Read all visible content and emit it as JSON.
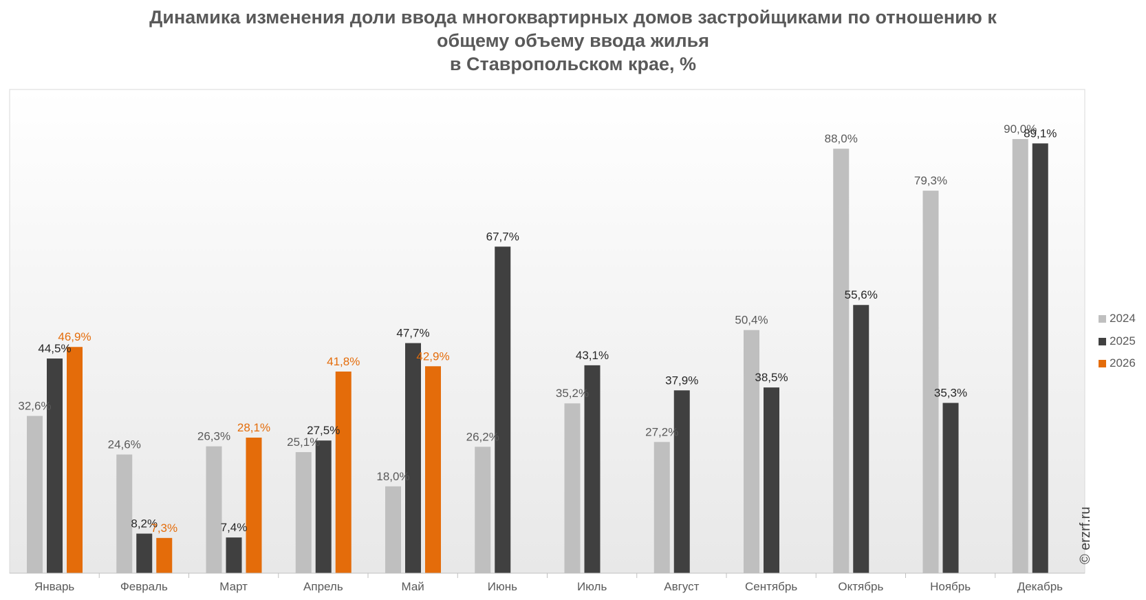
{
  "chart_data": {
    "type": "bar",
    "title_lines": [
      "Динамика изменения доли ввода многоквартирных домов застройщиками по отношению к",
      "общему объему ввода жилья",
      "в Ставропольском крае, %"
    ],
    "categories": [
      "Январь",
      "Февраль",
      "Март",
      "Апрель",
      "Май",
      "Июнь",
      "Июль",
      "Август",
      "Сентябрь",
      "Октябрь",
      "Ноябрь",
      "Декабрь"
    ],
    "series": [
      {
        "name": "2024",
        "color": "#bfbfbf",
        "label_color": "#595959",
        "values": [
          32.6,
          24.6,
          26.3,
          25.1,
          18.0,
          26.2,
          35.2,
          27.2,
          50.4,
          88.0,
          79.3,
          90.0
        ],
        "labels": [
          "32,6%",
          "24,6%",
          "26,3%",
          "25,1%",
          "18,0%",
          "26,2%",
          "35,2%",
          "27,2%",
          "50,4%",
          "88,0%",
          "79,3%",
          "90,0%"
        ]
      },
      {
        "name": "2025",
        "color": "#404040",
        "label_color": "#262626",
        "values": [
          44.5,
          8.2,
          7.4,
          27.5,
          47.7,
          67.7,
          43.1,
          37.9,
          38.5,
          55.6,
          35.3,
          89.1
        ],
        "labels": [
          "44,5%",
          "8,2%",
          "7,4%",
          "27,5%",
          "47,7%",
          "67,7%",
          "43,1%",
          "37,9%",
          "38,5%",
          "55,6%",
          "35,3%",
          "89,1%"
        ]
      },
      {
        "name": "2026",
        "color": "#e46c0a",
        "label_color": "#e46c0a",
        "values": [
          46.9,
          7.3,
          28.1,
          41.8,
          42.9,
          null,
          null,
          null,
          null,
          null,
          null,
          null
        ],
        "labels": [
          "46,9%",
          "7,3%",
          "28,1%",
          "41,8%",
          "42,9%",
          "",
          "",
          "",
          "",
          "",
          "",
          ""
        ]
      }
    ],
    "ylim": [
      0,
      100
    ],
    "grid": false,
    "legend_position": "right"
  },
  "watermark": "© erzrf.ru"
}
